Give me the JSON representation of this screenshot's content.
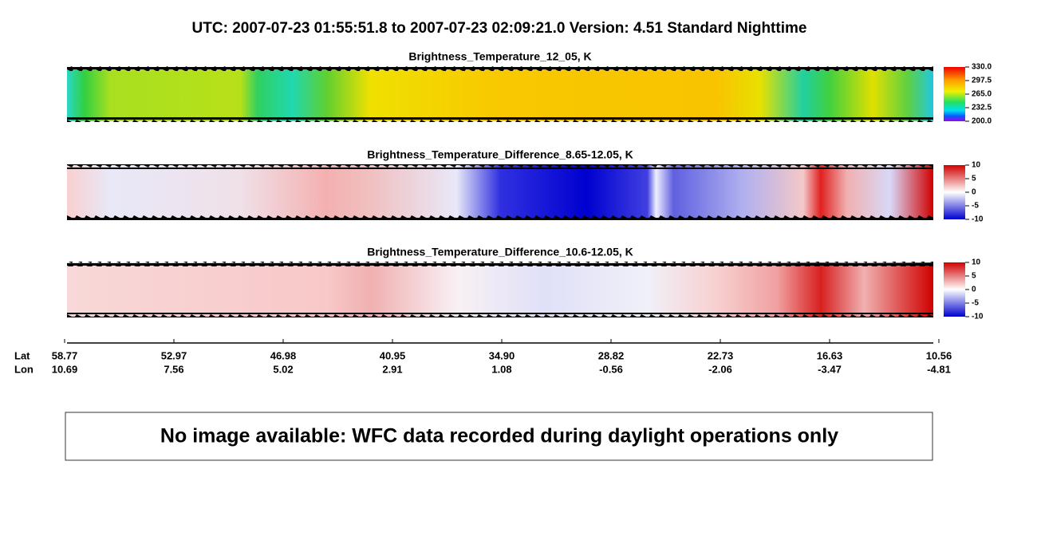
{
  "header": {
    "title": "UTC:  2007-07-23   01:55:51.8  to  2007-07-23   02:09:21.0    Version: 4.51  Standard Nighttime"
  },
  "panels": [
    {
      "title": "Brightness_Temperature_12_05, K",
      "colorbar": [
        "330.0",
        "297.5",
        "265.0",
        "232.5",
        "200.0"
      ]
    },
    {
      "title": "Brightness_Temperature_Difference_8.65-12.05, K",
      "colorbar": [
        "10",
        "5",
        "0",
        "-5",
        "-10"
      ]
    },
    {
      "title": "Brightness_Temperature_Difference_10.6-12.05, K",
      "colorbar": [
        "10",
        "5",
        "0",
        "-5",
        "-10"
      ]
    }
  ],
  "axis": {
    "lat_label": "Lat",
    "lon_label": "Lon",
    "lat": [
      "58.77",
      "52.97",
      "46.98",
      "40.95",
      "34.90",
      "28.82",
      "22.73",
      "16.63",
      "10.56"
    ],
    "lon": [
      "10.69",
      "7.56",
      "5.02",
      "2.91",
      "1.08",
      "-0.56",
      "-2.06",
      "-3.47",
      "-4.81"
    ]
  },
  "message": "No image available: WFC data recorded during daylight operations only"
}
